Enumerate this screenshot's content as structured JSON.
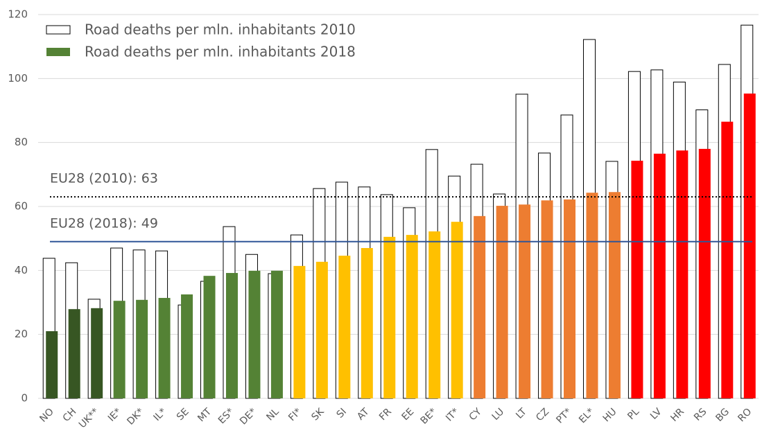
{
  "chart_data": {
    "type": "bar",
    "categories": [
      "NO",
      "CH",
      "UK**",
      "IE*",
      "DK*",
      "IL*",
      "SE",
      "MT",
      "ES*",
      "DE*",
      "NL",
      "FI*",
      "SK",
      "SI",
      "AT",
      "FR",
      "EE",
      "BE*",
      "IT*",
      "CY",
      "LU",
      "LT",
      "CZ",
      "PT*",
      "EL*",
      "HU",
      "PL",
      "LV",
      "HR",
      "RS",
      "BG",
      "RO"
    ],
    "series": [
      {
        "name": "Road deaths per mln. inhabitants 2010",
        "color": "#ffffff",
        "outline": "#000000",
        "values": [
          43.8,
          42.4,
          31.0,
          47.0,
          46.4,
          46.1,
          29.2,
          36.6,
          53.7,
          45.0,
          39.0,
          51.1,
          65.6,
          67.6,
          66.1,
          63.7,
          59.6,
          77.8,
          69.5,
          73.2,
          63.9,
          95.1,
          76.7,
          88.6,
          112.2,
          74.1,
          102.2,
          102.7,
          98.9,
          90.2,
          104.4,
          116.7
        ]
      },
      {
        "name": "Road deaths per mln. inhabitants 2018",
        "color": "#548235",
        "colors": [
          "#375623",
          "#375623",
          "#375623",
          "#548235",
          "#548235",
          "#548235",
          "#548235",
          "#548235",
          "#548235",
          "#548235",
          "#548235",
          "#ffc000",
          "#ffc000",
          "#ffc000",
          "#ffc000",
          "#ffc000",
          "#ffc000",
          "#ffc000",
          "#ffc000",
          "#ed7d31",
          "#ed7d31",
          "#ed7d31",
          "#ed7d31",
          "#ed7d31",
          "#ed7d31",
          "#ed7d31",
          "#ff0000",
          "#ff0000",
          "#ff0000",
          "#ff0000",
          "#ff0000",
          "#ff0000"
        ],
        "values": [
          21.0,
          27.9,
          28.2,
          30.5,
          30.8,
          31.4,
          32.5,
          38.3,
          39.2,
          39.9,
          39.9,
          41.4,
          42.7,
          44.6,
          47.0,
          50.5,
          51.1,
          52.2,
          55.2,
          57.0,
          60.2,
          60.6,
          61.9,
          62.2,
          64.3,
          64.5,
          74.3,
          76.5,
          77.5,
          78.0,
          86.5,
          95.3
        ]
      }
    ],
    "reference_lines": [
      {
        "label": "EU28 (2010): 63",
        "value": 63,
        "color": "#000000",
        "style": "dotted"
      },
      {
        "label": "EU28 (2018): 49",
        "value": 49,
        "color": "#2f5597",
        "style": "solid"
      }
    ],
    "ylim": [
      0,
      120
    ],
    "yticks": [
      0,
      20,
      40,
      60,
      80,
      100,
      120
    ],
    "grid": true,
    "legend": "top-left"
  }
}
